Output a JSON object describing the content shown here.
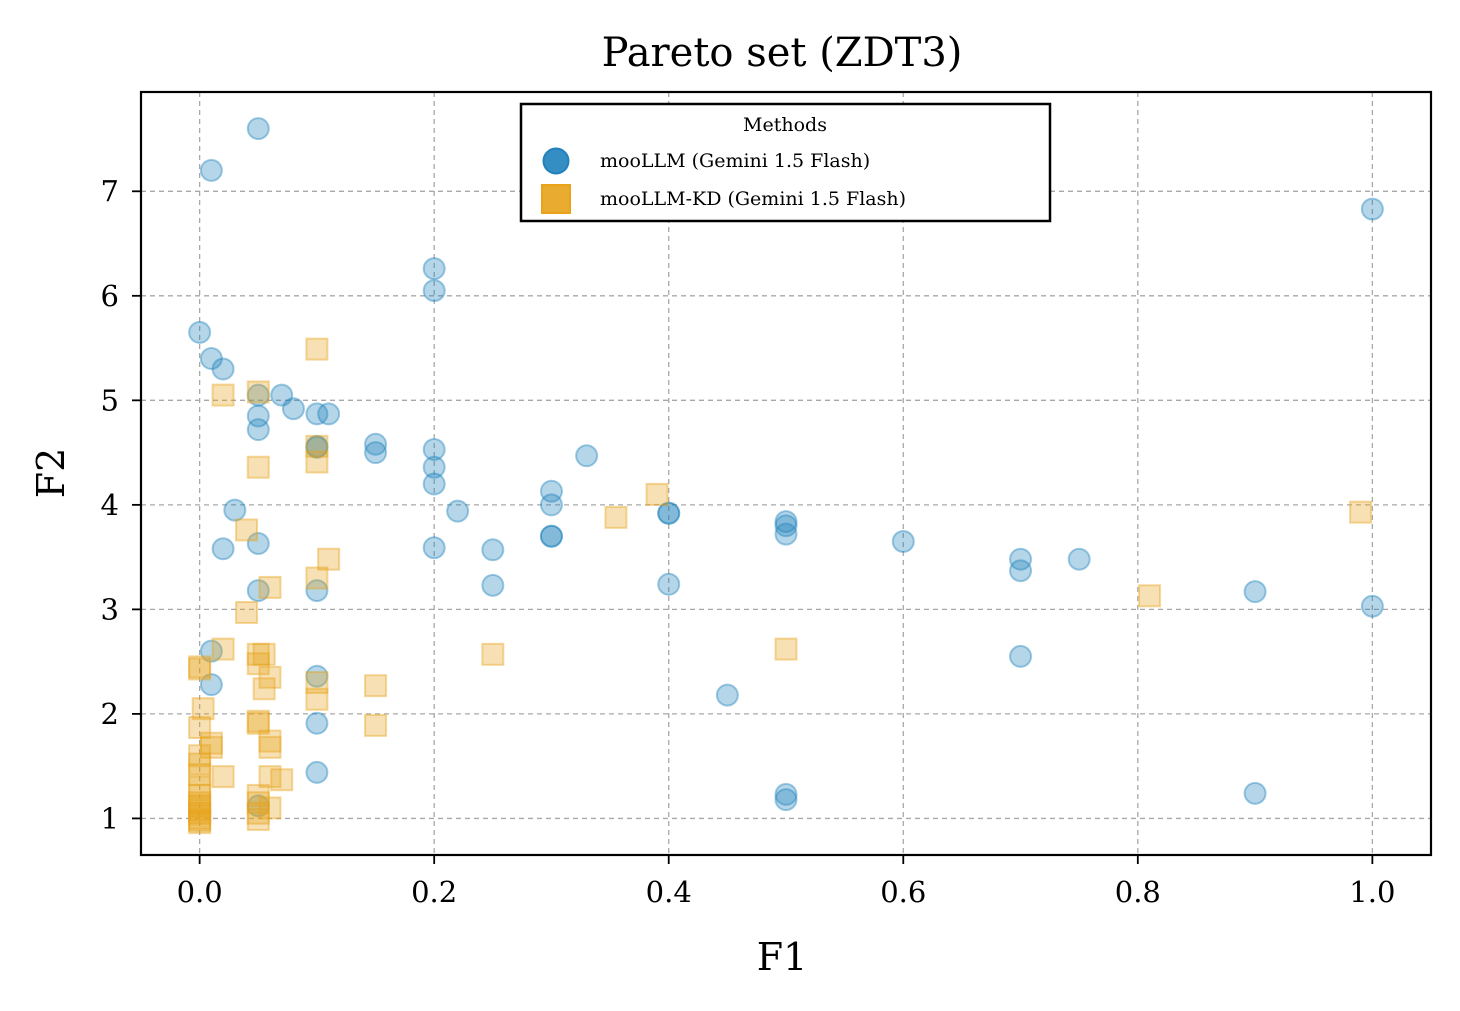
{
  "chart_data": {
    "type": "scatter",
    "title": "Pareto set (ZDT3)",
    "xlabel": "F1",
    "ylabel": "F2",
    "xlim": [
      -0.05,
      1.05
    ],
    "ylim": [
      0.65,
      7.95
    ],
    "xticks": [
      0.0,
      0.2,
      0.4,
      0.6,
      0.8,
      1.0
    ],
    "xtick_labels": [
      "0.0",
      "0.2",
      "0.4",
      "0.6",
      "0.8",
      "1.0"
    ],
    "yticks": [
      1,
      2,
      3,
      4,
      5,
      6,
      7
    ],
    "ytick_labels": [
      "1",
      "2",
      "3",
      "4",
      "5",
      "6",
      "7"
    ],
    "grid": true,
    "legend": {
      "title": "Methods",
      "placement": "upper-center"
    },
    "series": [
      {
        "name": "mooLLM (Gemini 1.5 Flash)",
        "marker": "circle",
        "color": "#1f82bc",
        "points": [
          [
            0.05,
            7.6
          ],
          [
            0.01,
            7.2
          ],
          [
            1.0,
            6.83
          ],
          [
            0.2,
            6.26
          ],
          [
            0.2,
            6.05
          ],
          [
            0.0,
            5.65
          ],
          [
            0.01,
            5.4
          ],
          [
            0.02,
            5.3
          ],
          [
            0.05,
            5.05
          ],
          [
            0.07,
            5.05
          ],
          [
            0.08,
            4.92
          ],
          [
            0.05,
            4.85
          ],
          [
            0.1,
            4.87
          ],
          [
            0.11,
            4.87
          ],
          [
            0.05,
            4.72
          ],
          [
            0.1,
            4.56
          ],
          [
            0.1,
            4.55
          ],
          [
            0.15,
            4.58
          ],
          [
            0.15,
            4.5
          ],
          [
            0.2,
            4.53
          ],
          [
            0.2,
            4.36
          ],
          [
            0.2,
            4.2
          ],
          [
            0.33,
            4.47
          ],
          [
            0.3,
            4.13
          ],
          [
            0.3,
            4.0
          ],
          [
            0.22,
            3.94
          ],
          [
            0.03,
            3.95
          ],
          [
            0.4,
            3.92
          ],
          [
            0.4,
            3.92
          ],
          [
            0.5,
            3.84
          ],
          [
            0.5,
            3.8
          ],
          [
            0.5,
            3.72
          ],
          [
            0.3,
            3.7
          ],
          [
            0.3,
            3.7
          ],
          [
            0.02,
            3.58
          ],
          [
            0.05,
            3.63
          ],
          [
            0.2,
            3.59
          ],
          [
            0.25,
            3.57
          ],
          [
            0.6,
            3.65
          ],
          [
            0.7,
            3.48
          ],
          [
            0.7,
            3.37
          ],
          [
            0.75,
            3.48
          ],
          [
            0.25,
            3.23
          ],
          [
            0.4,
            3.24
          ],
          [
            0.05,
            3.18
          ],
          [
            0.1,
            3.18
          ],
          [
            0.9,
            3.17
          ],
          [
            1.0,
            3.03
          ],
          [
            0.01,
            2.6
          ],
          [
            0.01,
            2.28
          ],
          [
            0.1,
            2.36
          ],
          [
            0.7,
            2.55
          ],
          [
            0.45,
            2.18
          ],
          [
            0.1,
            1.91
          ],
          [
            0.1,
            1.44
          ],
          [
            0.05,
            1.12
          ],
          [
            0.5,
            1.23
          ],
          [
            0.5,
            1.18
          ],
          [
            0.9,
            1.24
          ]
        ]
      },
      {
        "name": "mooLLM-KD (Gemini 1.5 Flash)",
        "marker": "square",
        "color": "#e8a31a",
        "points": [
          [
            0.1,
            5.49
          ],
          [
            0.05,
            5.08
          ],
          [
            0.02,
            5.05
          ],
          [
            0.1,
            4.56
          ],
          [
            0.1,
            4.41
          ],
          [
            0.05,
            4.36
          ],
          [
            0.39,
            4.1
          ],
          [
            0.99,
            3.93
          ],
          [
            0.355,
            3.88
          ],
          [
            0.04,
            3.76
          ],
          [
            0.11,
            3.48
          ],
          [
            0.1,
            3.3
          ],
          [
            0.06,
            3.21
          ],
          [
            0.04,
            2.97
          ],
          [
            0.81,
            3.13
          ],
          [
            0.5,
            2.62
          ],
          [
            0.25,
            2.57
          ],
          [
            0.02,
            2.62
          ],
          [
            0.0,
            2.45
          ],
          [
            0.0,
            2.43
          ],
          [
            0.05,
            2.57
          ],
          [
            0.055,
            2.57
          ],
          [
            0.05,
            2.48
          ],
          [
            0.06,
            2.35
          ],
          [
            0.055,
            2.24
          ],
          [
            0.1,
            2.3
          ],
          [
            0.1,
            2.14
          ],
          [
            0.15,
            2.27
          ],
          [
            0.15,
            1.89
          ],
          [
            0.003,
            2.05
          ],
          [
            0.05,
            1.93
          ],
          [
            0.05,
            1.91
          ],
          [
            0.0,
            1.87
          ],
          [
            0.01,
            1.72
          ],
          [
            0.01,
            1.68
          ],
          [
            0.06,
            1.74
          ],
          [
            0.06,
            1.68
          ],
          [
            0.0,
            1.6
          ],
          [
            0.0,
            1.52
          ],
          [
            0.02,
            1.4
          ],
          [
            0.06,
            1.4
          ],
          [
            0.07,
            1.37
          ],
          [
            0.0,
            1.42
          ],
          [
            0.0,
            1.3
          ],
          [
            0.0,
            1.22
          ],
          [
            0.0,
            1.15
          ],
          [
            0.0,
            1.08
          ],
          [
            0.0,
            1.0
          ],
          [
            0.0,
            0.98
          ],
          [
            0.0,
            0.96
          ],
          [
            0.0,
            1.05
          ],
          [
            0.0,
            1.12
          ],
          [
            0.05,
            1.22
          ],
          [
            0.05,
            1.15
          ],
          [
            0.05,
            1.05
          ],
          [
            0.05,
            0.99
          ],
          [
            0.06,
            1.1
          ]
        ]
      }
    ]
  }
}
